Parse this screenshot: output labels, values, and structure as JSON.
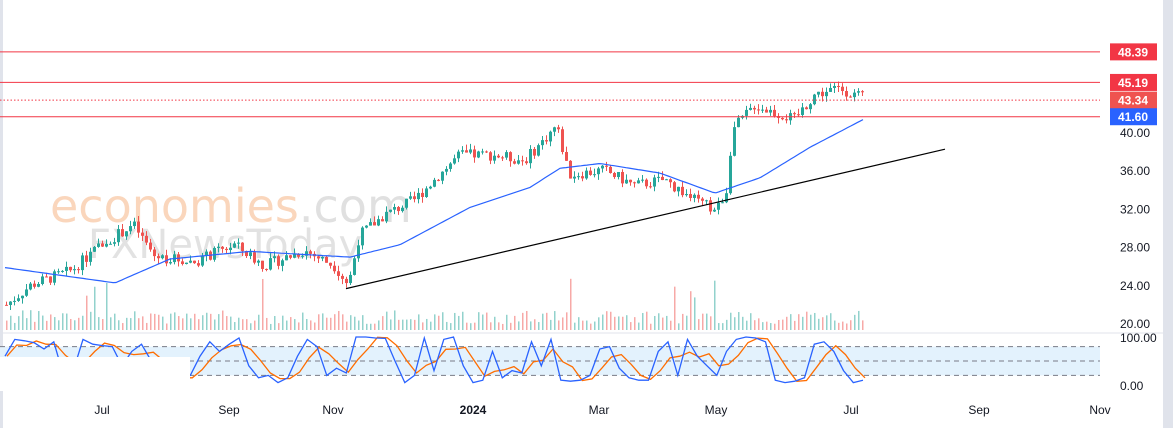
{
  "watermark": {
    "brand": "economies",
    "brand_suffix": ".com",
    "sub": "FXNewsToday"
  },
  "colors": {
    "up": "#26a69a",
    "down": "#ef5350",
    "ma": "#2962ff",
    "stoch_k": "#2962ff",
    "stoch_d": "#ff6d00",
    "level": "#f23645",
    "trend": "#000000",
    "band": "#e3f2fd"
  },
  "chart_data": {
    "type": "candlestick",
    "title": "",
    "price_axis": {
      "ticks": [
        "40.00",
        "36.00",
        "32.00",
        "28.00",
        "24.00",
        "20.00"
      ],
      "tick_values": [
        40,
        36,
        32,
        28,
        24,
        20
      ],
      "ylim": [
        20,
        50
      ]
    },
    "time_axis": {
      "ticks": [
        "Jul",
        "Sep",
        "Nov",
        "2024",
        "Mar",
        "May",
        "Jul",
        "Sep",
        "Nov"
      ]
    },
    "price_path": [
      [
        0,
        21.9
      ],
      [
        25,
        24
      ],
      [
        65,
        25.5
      ],
      [
        95,
        28.2
      ],
      [
        127,
        30.3
      ],
      [
        148,
        27
      ],
      [
        188,
        26.4
      ],
      [
        228,
        28.2
      ],
      [
        258,
        26
      ],
      [
        298,
        27.6
      ],
      [
        328,
        26
      ],
      [
        342,
        24
      ],
      [
        353,
        29.2
      ],
      [
        378,
        31.3
      ],
      [
        408,
        32.9
      ],
      [
        428,
        35
      ],
      [
        453,
        37.6
      ],
      [
        488,
        37.6
      ],
      [
        518,
        37
      ],
      [
        538,
        39.2
      ],
      [
        550,
        40.7
      ],
      [
        563,
        35.5
      ],
      [
        598,
        36
      ],
      [
        628,
        34.4
      ],
      [
        658,
        35
      ],
      [
        688,
        32.9
      ],
      [
        710,
        31.8
      ],
      [
        720,
        33.9
      ],
      [
        726,
        40.2
      ],
      [
        748,
        42.8
      ],
      [
        788,
        41.3
      ],
      [
        808,
        43.9
      ],
      [
        833,
        44.6
      ],
      [
        858,
        43.5
      ]
    ],
    "moving_average": [
      [
        0,
        25.8
      ],
      [
        110,
        24.2
      ],
      [
        165,
        26.7
      ],
      [
        245,
        27.5
      ],
      [
        295,
        27.2
      ],
      [
        345,
        26.9
      ],
      [
        395,
        28.2
      ],
      [
        465,
        32.1
      ],
      [
        525,
        34.2
      ],
      [
        555,
        36.2
      ],
      [
        595,
        36.7
      ],
      [
        655,
        35.7
      ],
      [
        710,
        33.6
      ],
      [
        755,
        35.2
      ],
      [
        805,
        38.4
      ],
      [
        858,
        41.3
      ]
    ],
    "levels": [
      {
        "label": "48.39",
        "value": 48.39,
        "style": "solid",
        "tag_color": "#f23645"
      },
      {
        "label": "45.19",
        "value": 45.19,
        "style": "solid",
        "tag_color": "#f23645"
      },
      {
        "label": "43.34",
        "value": 43.34,
        "style": "dotted",
        "tag_color": "#ef5350"
      },
      {
        "label": "41.60",
        "value": 41.6,
        "style": "solid",
        "tag_color": "#2962ff"
      }
    ],
    "trendline": {
      "from": [
        341,
        23.6
      ],
      "to": [
        940,
        38.2
      ]
    },
    "stochastic": {
      "axis_ticks": [
        "100.00",
        "0.00"
      ],
      "bands": [
        80,
        50,
        20
      ],
      "k": [
        60,
        95,
        92,
        88,
        75,
        90,
        20,
        30,
        95,
        85,
        82,
        80,
        40,
        70,
        85,
        50,
        20,
        10,
        15,
        20,
        60,
        90,
        70,
        85,
        98,
        40,
        15,
        20,
        5,
        15,
        60,
        95,
        80,
        20,
        35,
        25,
        100,
        100,
        98,
        97,
        50,
        5,
        20,
        98,
        30,
        95,
        100,
        40,
        5,
        10,
        70,
        15,
        30,
        25,
        90,
        40,
        95,
        10,
        8,
        10,
        20,
        75,
        80,
        35,
        15,
        10,
        10,
        70,
        90,
        20,
        95,
        60,
        40,
        20,
        70,
        95,
        100,
        98,
        90,
        10,
        5,
        8,
        15,
        85,
        90,
        70,
        30,
        5,
        10
      ]
    }
  }
}
